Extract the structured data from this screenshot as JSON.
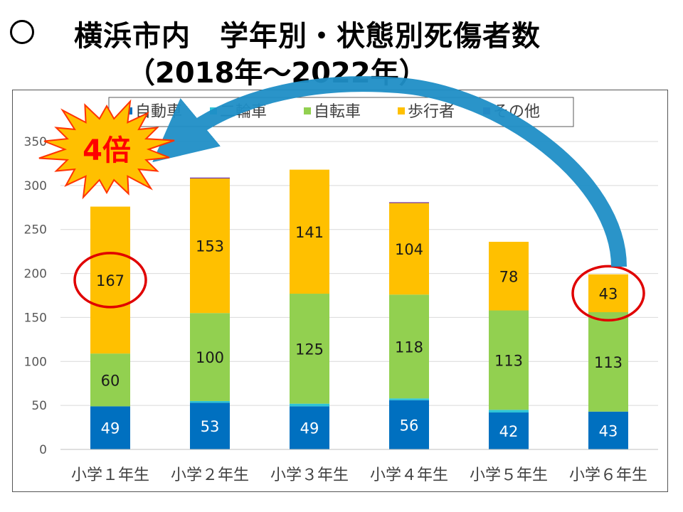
{
  "title": {
    "bullet": "○",
    "line1": "横浜市内　学年別・状態別死傷者数",
    "line2": "（2018年～2022年）"
  },
  "callout": {
    "text": "4倍",
    "color": "#ff0000",
    "fill": "#ffc000"
  },
  "colors": {
    "highlight_circle": "#e00000",
    "arrow": "#1f8fc7"
  },
  "chart_data": {
    "type": "bar",
    "stacked": true,
    "categories": [
      "小学１年生",
      "小学２年生",
      "小学３年生",
      "小学４年生",
      "小学５年生",
      "小学６年生"
    ],
    "series": [
      {
        "name": "自動車",
        "color": "#0070c0",
        "values": [
          49,
          53,
          49,
          56,
          42,
          43
        ],
        "show_labels": true
      },
      {
        "name": "二輪車",
        "color": "#2ec4d6",
        "values": [
          0,
          2,
          3,
          2,
          3,
          0
        ],
        "show_labels": false
      },
      {
        "name": "自転車",
        "color": "#92d050",
        "values": [
          60,
          100,
          125,
          118,
          113,
          113
        ],
        "show_labels": true
      },
      {
        "name": "歩行者",
        "color": "#ffc000",
        "values": [
          167,
          153,
          141,
          104,
          78,
          43
        ],
        "show_labels": true
      },
      {
        "name": "その他",
        "color": "#7030a0",
        "values": [
          0,
          1,
          0,
          1,
          0,
          0
        ],
        "show_labels": false
      }
    ],
    "yticks": [
      0,
      50,
      100,
      150,
      200,
      250,
      300,
      350
    ],
    "ylim": [
      0,
      350
    ],
    "grid": true,
    "legend_position": "top",
    "highlighted_labels": [
      [
        0,
        3
      ],
      [
        5,
        3
      ]
    ]
  }
}
